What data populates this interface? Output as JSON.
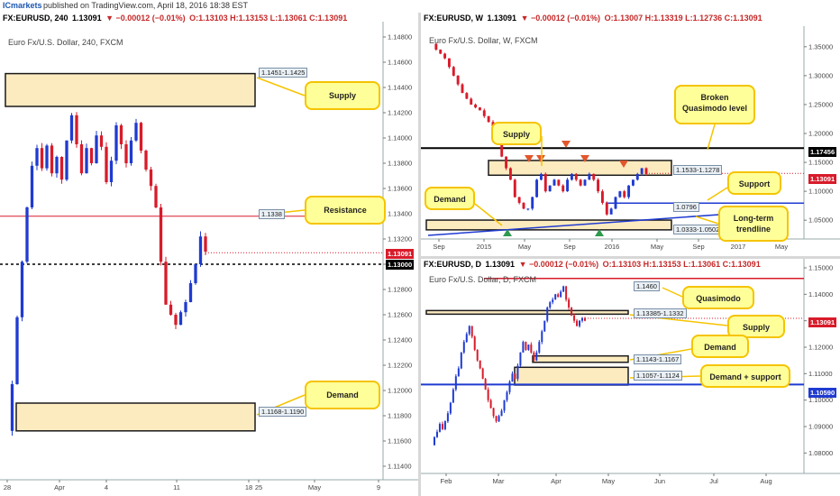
{
  "header": {
    "brand": "ICmarkets",
    "published": "published on TradingView.com, April 18, 2016 18:38 EST"
  },
  "colors": {
    "up": "#1f3bd1",
    "down": "#d81b2a",
    "zone_fill": "#fdebc0",
    "zone_border": "#1a1a1a",
    "note_bg": "#ffff99",
    "note_border": "#f5c400"
  },
  "panels": {
    "h4": {
      "symbol": "FX:EURUSD, 240",
      "price": "1.13091",
      "change": "▼ −0.00012 (−0.01%)",
      "ohlc": "O:1.13103 H:1.13153 L:1.13061 C:1.13091",
      "watermark": "Euro Fx/U.S. Dollar, 240, FXCM",
      "y_ticks": [
        "1.14800",
        "1.14600",
        "1.14400",
        "1.14200",
        "1.14000",
        "1.13800",
        "1.13600",
        "1.13400",
        "1.13200",
        "1.13000",
        "1.12800",
        "1.12600",
        "1.12400",
        "1.12200",
        "1.12000",
        "1.11800",
        "1.11600",
        "1.11400"
      ],
      "x_ticks": [
        "28",
        "Apr",
        "4",
        "11",
        "18",
        "25",
        "May",
        "9"
      ],
      "last_price_tag": "1.13091",
      "level_tag": "1.13000",
      "zones": [
        "1.1451-1.1425",
        "1.1168-1.1190"
      ],
      "line_labels": [
        "1.1338"
      ],
      "notes": [
        "Supply",
        "Resistance",
        "Demand"
      ]
    },
    "weekly": {
      "symbol": "FX:EURUSD, W",
      "price": "1.13091",
      "change": "▼ −0.00012 (−0.01%)",
      "ohlc": "O:1.13007 H:1.13319 L:1.12736 C:1.13091",
      "watermark": "Euro Fx/U.S. Dollar, W, FXCM",
      "y_ticks": [
        "1.35000",
        "1.30000",
        "1.25000",
        "1.20000",
        "1.15000",
        "1.10000",
        "1.05000"
      ],
      "x_ticks": [
        "Sep",
        "2015",
        "May",
        "Sep",
        "2016",
        "May",
        "Sep",
        "2017",
        "May"
      ],
      "last_price_tag": "1.13091",
      "level_tag": "1.17456",
      "zones": [
        "1.1533-1.1278",
        "1.0333-1.0502"
      ],
      "line_labels": [
        "1.0796"
      ],
      "notes": [
        "Supply",
        "Broken Quasimodo level",
        "Support",
        "Demand",
        "Long-term trendline"
      ]
    },
    "daily": {
      "symbol": "FX:EURUSD, D",
      "price": "1.13091",
      "change": "▼ −0.00012 (−0.01%)",
      "ohlc": "O:1.13103 H:1.13153 L:1.13061 C:1.13091",
      "watermark": "Euro Fx/U.S. Dollar, D, FXCM",
      "y_ticks": [
        "1.15000",
        "1.14000",
        "1.13000",
        "1.12000",
        "1.11000",
        "1.10000",
        "1.09000",
        "1.08000"
      ],
      "x_ticks": [
        "Feb",
        "Mar",
        "Apr",
        "May",
        "Jun",
        "Jul",
        "Aug"
      ],
      "last_price_tag": "1.13091",
      "level_tag": "1.10590",
      "zones": [
        "1.13385-1.1332",
        "1.1143-1.1167",
        "1.1057-1.1124"
      ],
      "line_labels": [
        "1.1460"
      ],
      "notes": [
        "Quasimodo",
        "Supply",
        "Demand",
        "Demand + support"
      ]
    }
  },
  "chart_data": [
    {
      "type": "candlestick",
      "title": "Euro Fx/U.S. Dollar, 240, FXCM",
      "ylim": [
        1.1135,
        1.1485
      ],
      "x_categories": [
        "28",
        "Apr",
        "4",
        "11",
        "18",
        "25",
        "May",
        "9"
      ],
      "horizontal_levels": [
        1.1338,
        1.13
      ],
      "zones": [
        [
          1.1425,
          1.1451
        ],
        [
          1.1168,
          1.119
        ]
      ],
      "close_path": [
        1.1168,
        1.1205,
        1.1258,
        1.1302,
        1.1345,
        1.1378,
        1.1392,
        1.1376,
        1.1394,
        1.1372,
        1.1385,
        1.1367,
        1.1398,
        1.1418,
        1.1395,
        1.1372,
        1.1392,
        1.138,
        1.1402,
        1.1393,
        1.1365,
        1.1382,
        1.141,
        1.1395,
        1.138,
        1.1398,
        1.1412,
        1.139,
        1.1375,
        1.1362,
        1.1345,
        1.1302,
        1.1268,
        1.126,
        1.1252,
        1.1262,
        1.127,
        1.1285,
        1.13,
        1.1322,
        1.131
      ],
      "last": 1.13091
    },
    {
      "type": "candlestick",
      "title": "Euro Fx/U.S. Dollar, W, FXCM",
      "ylim": [
        1.03,
        1.37
      ],
      "x_categories": [
        "Sep",
        "2015",
        "May",
        "Sep",
        "2016",
        "May",
        "Sep",
        "2017",
        "May"
      ],
      "horizontal_levels": [
        1.17456,
        1.0796
      ],
      "zones": [
        [
          1.1278,
          1.1533
        ],
        [
          1.0333,
          1.0502
        ]
      ],
      "close_path": [
        1.355,
        1.345,
        1.338,
        1.33,
        1.315,
        1.3,
        1.285,
        1.27,
        1.26,
        1.25,
        1.245,
        1.24,
        1.23,
        1.22,
        1.21,
        1.19,
        1.16,
        1.14,
        1.12,
        1.09,
        1.08,
        1.07,
        1.07,
        1.09,
        1.12,
        1.13,
        1.1,
        1.11,
        1.12,
        1.11,
        1.1,
        1.12,
        1.13,
        1.12,
        1.11,
        1.12,
        1.13,
        1.12,
        1.1,
        1.08,
        1.06,
        1.07,
        1.09,
        1.1,
        1.09,
        1.11,
        1.12,
        1.13,
        1.14,
        1.13
      ],
      "last": 1.13091
    },
    {
      "type": "candlestick",
      "title": "Euro Fx/U.S. Dollar, D, FXCM",
      "ylim": [
        1.075,
        1.15
      ],
      "x_categories": [
        "Feb",
        "Mar",
        "Apr",
        "May",
        "Jun",
        "Jul",
        "Aug"
      ],
      "horizontal_levels": [
        1.146,
        1.1059
      ],
      "zones": [
        [
          1.1332,
          1.13385
        ],
        [
          1.1143,
          1.1167
        ],
        [
          1.1057,
          1.1124
        ]
      ],
      "close_path": [
        1.083,
        1.086,
        1.088,
        1.091,
        1.089,
        1.092,
        1.095,
        1.099,
        1.104,
        1.109,
        1.112,
        1.118,
        1.122,
        1.125,
        1.128,
        1.124,
        1.119,
        1.115,
        1.112,
        1.108,
        1.104,
        1.1,
        1.097,
        1.094,
        1.092,
        1.094,
        1.096,
        1.1,
        1.103,
        1.107,
        1.11,
        1.108,
        1.113,
        1.118,
        1.122,
        1.119,
        1.121,
        1.118,
        1.115,
        1.118,
        1.122,
        1.126,
        1.13,
        1.135,
        1.137,
        1.138,
        1.14,
        1.139,
        1.141,
        1.143,
        1.138,
        1.135,
        1.132,
        1.13,
        1.128,
        1.13,
        1.131,
        1.13
      ],
      "last": 1.13091
    }
  ]
}
